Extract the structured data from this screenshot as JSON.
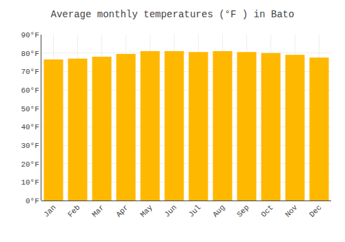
{
  "chart_data": {
    "type": "bar",
    "title": "Average monthly temperatures (°F ) in Bato",
    "categories": [
      "Jan",
      "Feb",
      "Mar",
      "Apr",
      "May",
      "Jun",
      "Jul",
      "Aug",
      "Sep",
      "Oct",
      "Nov",
      "Dec"
    ],
    "values": [
      76.5,
      77.0,
      78.0,
      79.5,
      81.0,
      81.0,
      80.5,
      81.0,
      80.5,
      80.0,
      79.0,
      77.5
    ],
    "color": "#FFB800",
    "ylim": [
      0,
      90
    ],
    "yticks": [
      {
        "value": 0,
        "label": "0°F"
      },
      {
        "value": 10,
        "label": "10°F"
      },
      {
        "value": 20,
        "label": "20°F"
      },
      {
        "value": 30,
        "label": "30°F"
      },
      {
        "value": 40,
        "label": "40°F"
      },
      {
        "value": 50,
        "label": "50°F"
      },
      {
        "value": 60,
        "label": "60°F"
      },
      {
        "value": 70,
        "label": "70°F"
      },
      {
        "value": 80,
        "label": "80°F"
      },
      {
        "value": 90,
        "label": "90°F"
      }
    ],
    "grid": true
  }
}
